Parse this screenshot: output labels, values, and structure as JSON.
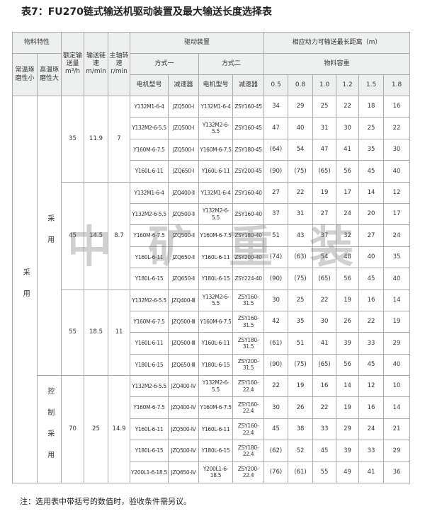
{
  "title": "表7：FU270链式输送机驱动装置及最大输送长度选择表",
  "headers": {
    "material": "物料特性",
    "normal_temp": "常温琢磨性小",
    "high_temp": "高温琢磨性大",
    "rated": "额定输送量m³/h",
    "speed": "输送链速m/min",
    "shaft": "主轴转速r/min",
    "drive": "驱动装置",
    "mode1": "方式一",
    "mode2": "方式二",
    "motor": "电机型号",
    "reducer": "减速器",
    "distance": "相应动力可输送最长距离（m）",
    "density": "物料容重",
    "densities": [
      "0.5",
      "0.8",
      "1.0",
      "1.2",
      "1.5",
      "1.8"
    ]
  },
  "col1_label": "采用",
  "col2_labels": [
    "采用",
    "控制采用"
  ],
  "groups": [
    {
      "rated": "35",
      "speed": "11.9",
      "shaft": "7",
      "rows": [
        {
          "m1": "Y132M1-6-4",
          "r1": "JZQ500-Ⅰ",
          "m2": "Y132M1-6-4",
          "r2": "ZSY160-45",
          "v": [
            "34",
            "29",
            "25",
            "22",
            "18",
            "16"
          ]
        },
        {
          "m1": "Y132M2-6-5.5",
          "r1": "JZQ500-Ⅰ",
          "m2": "Y132M2-6-5.5",
          "r2": "ZSY160-45",
          "v": [
            "47",
            "40",
            "31",
            "30",
            "25",
            "22"
          ]
        },
        {
          "m1": "Y160M-6-7.5",
          "r1": "JZQ500-Ⅰ",
          "m2": "Y160M-6-7.5",
          "r2": "ZSY180-45",
          "v": [
            "(64)",
            "54",
            "47",
            "41",
            "35",
            "30"
          ]
        },
        {
          "m1": "Y160L-6-11",
          "r1": "JZQ650-Ⅰ",
          "m2": "Y160L-6-11",
          "r2": "ZSY200-45",
          "v": [
            "(90)",
            "(75)",
            "(65)",
            "56",
            "45",
            "40"
          ]
        }
      ]
    },
    {
      "rated": "45",
      "speed": "14.5",
      "shaft": "8.7",
      "rows": [
        {
          "m1": "Y132M1-6-4",
          "r1": "JZQ400-Ⅱ",
          "m2": "Y132M1-6-4",
          "r2": "ZSY160-40",
          "v": [
            "27",
            "22",
            "19",
            "17",
            "14",
            "12"
          ]
        },
        {
          "m1": "Y132M2-6-5.5",
          "r1": "JZQ500-Ⅱ",
          "m2": "Y132M2-6-5.5",
          "r2": "ZSY160-40",
          "v": [
            "37",
            "31",
            "27",
            "24",
            "20",
            "17"
          ]
        },
        {
          "m1": "Y160M-6-7.5",
          "r1": "JZQ500-Ⅱ",
          "m2": "Y160M-6-7.5",
          "r2": "ZSY180-40",
          "v": [
            "51",
            "43",
            "37",
            "32",
            "27",
            "24"
          ]
        },
        {
          "m1": "Y160L-6-11",
          "r1": "JZQ650-Ⅱ",
          "m2": "Y160L-6-11",
          "r2": "ZSY200-40",
          "v": [
            "(74)",
            "(63)",
            "54",
            "48",
            "40",
            "35"
          ]
        },
        {
          "m1": "Y180L-6-15",
          "r1": "JZQ650-Ⅱ",
          "m2": "Y180L-6-15",
          "r2": "ZSY224-40",
          "v": [
            "(90)",
            "(75)",
            "(65)",
            "56",
            "45",
            "40"
          ]
        }
      ]
    },
    {
      "rated": "55",
      "speed": "18.5",
      "shaft": "11",
      "rows": [
        {
          "m1": "Y132M2-6-5.5",
          "r1": "JZQ400-Ⅲ",
          "m2": "Y132M2-6-5.5",
          "r2": "ZSY160-31.5",
          "v": [
            "30",
            "25",
            "22",
            "19",
            "16",
            "14"
          ]
        },
        {
          "m1": "Y160M-6-7.5",
          "r1": "JZQ500-Ⅲ",
          "m2": "Y160M-6-7.5",
          "r2": "ZSY160-31.5",
          "v": [
            "42",
            "35",
            "30",
            "26",
            "22",
            "19"
          ]
        },
        {
          "m1": "Y160L-6-11",
          "r1": "JZQ500-Ⅲ",
          "m2": "Y160L-6-11",
          "r2": "ZSY180-31.5",
          "v": [
            "(61)",
            "51",
            "41",
            "39",
            "33",
            "29"
          ]
        },
        {
          "m1": "Y180L-6-15",
          "r1": "JZQ650-Ⅲ",
          "m2": "Y180L-6-15",
          "r2": "ZSY200-31.5",
          "v": [
            "(90)",
            "(75)",
            "(65)",
            "56",
            "45",
            "40"
          ]
        }
      ]
    },
    {
      "rated": "70",
      "speed": "25",
      "shaft": "14.9",
      "rows": [
        {
          "m1": "Y132M2-6-5.5",
          "r1": "JZQ400-Ⅳ",
          "m2": "Y132M2-6-5.5",
          "r2": "ZSY160-22.4",
          "v": [
            "22",
            "19",
            "16",
            "14",
            "12",
            "10"
          ]
        },
        {
          "m1": "Y160M-6-7.5",
          "r1": "JZQ400-Ⅳ",
          "m2": "Y160M-6-7.5",
          "r2": "ZSY160-22.4",
          "v": [
            "30",
            "26",
            "22",
            "19",
            "16",
            "14"
          ]
        },
        {
          "m1": "Y160L-6-11",
          "r1": "JZQ500-Ⅳ",
          "m2": "Y160L-6-11",
          "r2": "ZSY160-22.4",
          "v": [
            "45",
            "38",
            "33",
            "29",
            "24",
            "21"
          ]
        },
        {
          "m1": "Y180L-6-15",
          "r1": "JZQ500-Ⅳ",
          "m2": "Y180L-6-15",
          "r2": "ZSY180-22.4",
          "v": [
            "(62)",
            "52",
            "45",
            "39",
            "33",
            "29"
          ]
        },
        {
          "m1": "Y200L1-6-18.5",
          "r1": "JZQ650-Ⅳ",
          "m2": "Y200L1-6-18.5",
          "r2": "ZSY200-22.4",
          "v": [
            "(76)",
            "(61)",
            "55",
            "49",
            "41",
            "36"
          ]
        }
      ]
    }
  ],
  "watermark": "中矿重装",
  "note": "注：选用表中带括号的数值时，验收条件需另议。"
}
